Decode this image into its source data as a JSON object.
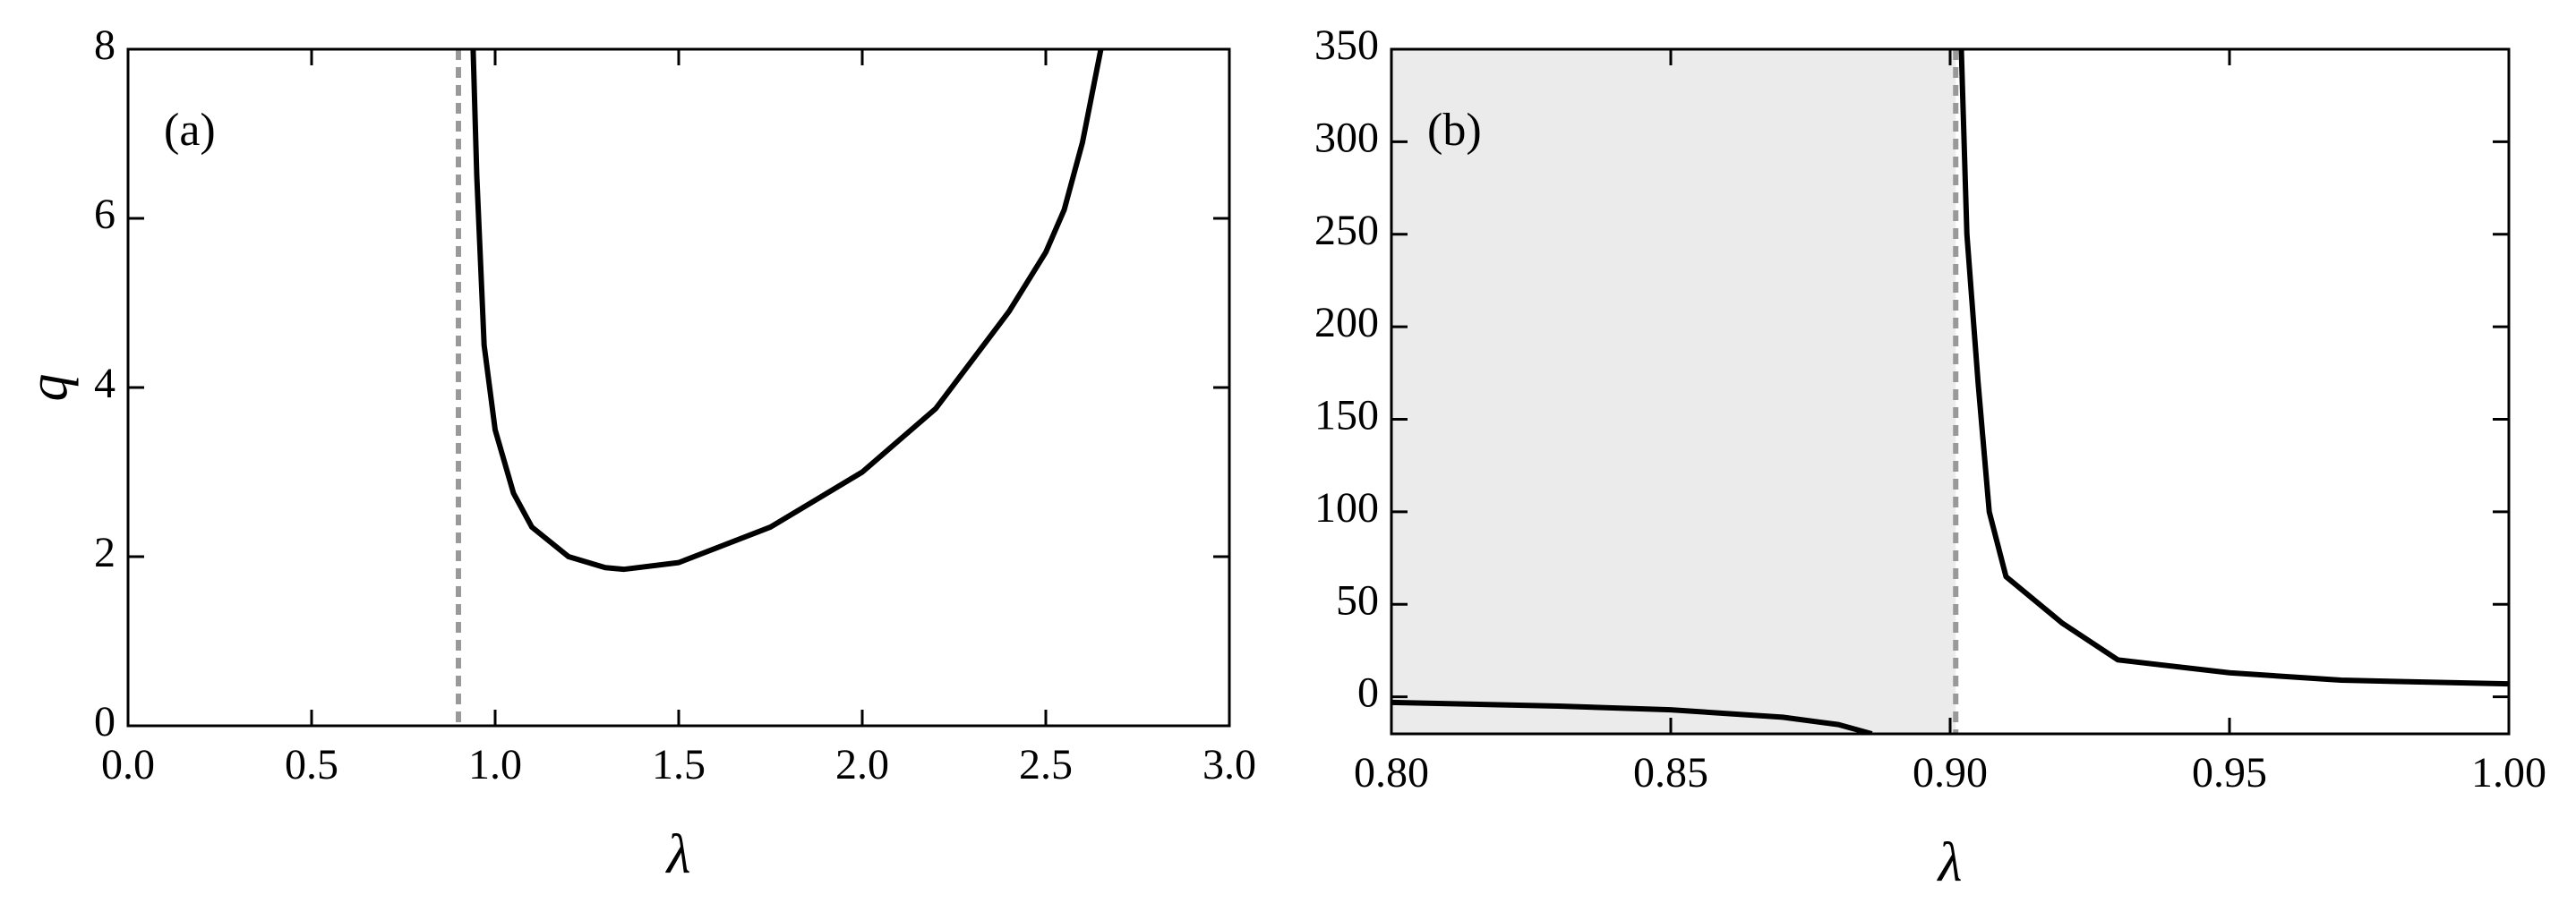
{
  "chart_data": [
    {
      "type": "line",
      "annotation": "(a)",
      "xlabel": "λ",
      "ylabel": "q",
      "xlim": [
        0,
        3
      ],
      "ylim": [
        0,
        8
      ],
      "xticks": [
        {
          "value": 0,
          "label": "0.0"
        },
        0.5,
        {
          "value": 1,
          "label": "1.0"
        },
        1.5,
        {
          "value": 2,
          "label": "2.0"
        },
        2.5,
        {
          "value": 3,
          "label": "3.0"
        }
      ],
      "yticks": [
        0,
        2,
        4,
        6,
        8
      ],
      "reference_line_x": 0.9,
      "reference_color": "#999999",
      "x": [
        0.94,
        0.95,
        0.97,
        1.0,
        1.05,
        1.1,
        1.2,
        1.3,
        1.35,
        1.5,
        1.75,
        2.0,
        2.2,
        2.4,
        2.5,
        2.55,
        2.6,
        2.65
      ],
      "series": [
        {
          "color": "#000000",
          "values": [
            8,
            6.5,
            4.5,
            3.5,
            2.75,
            2.35,
            2.0,
            1.87,
            1.85,
            1.93,
            2.35,
            3.0,
            3.75,
            4.9,
            5.6,
            6.1,
            6.9,
            8
          ]
        }
      ]
    },
    {
      "type": "line",
      "annotation": "(b)",
      "xlabel": "λ",
      "xlim": [
        0.8,
        1.0
      ],
      "ylim": [
        -20,
        350
      ],
      "xticks": [
        {
          "value": 0.8,
          "label": "0.80"
        },
        0.85,
        {
          "value": 0.9,
          "label": "0.90"
        },
        0.95,
        {
          "value": 1.0,
          "label": "1.00"
        }
      ],
      "yticks": [
        0,
        50,
        100,
        150,
        200,
        250,
        300,
        350
      ],
      "reference_line_x": 0.901,
      "reference_color": "#999999",
      "shaded_x": [
        0.8,
        0.901
      ],
      "shade_color": "#ebebeb",
      "x": [
        0.8,
        0.83,
        0.85,
        0.87,
        0.88,
        0.886,
        0.9015,
        0.902,
        0.903,
        0.905,
        0.907,
        0.91,
        0.92,
        0.93,
        0.95,
        0.97,
        1.0
      ],
      "series": [
        {
          "color": "#000000",
          "values": [
            -3,
            -5,
            -7,
            -11,
            -15,
            -20,
            null,
            350,
            250,
            170,
            100,
            65,
            40,
            20,
            13,
            9,
            7
          ]
        }
      ]
    }
  ]
}
